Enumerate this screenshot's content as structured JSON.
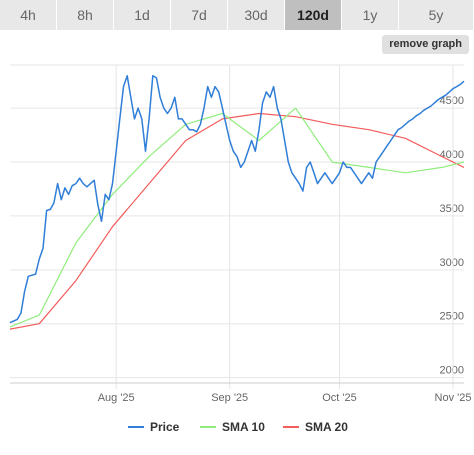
{
  "tabs": [
    {
      "label": "4h",
      "active": false
    },
    {
      "label": "8h",
      "active": false
    },
    {
      "label": "1d",
      "active": false
    },
    {
      "label": "7d",
      "active": false
    },
    {
      "label": "30d",
      "active": false
    },
    {
      "label": "120d",
      "active": true
    },
    {
      "label": "1y",
      "active": false
    },
    {
      "label": "5y",
      "active": false
    }
  ],
  "remove_graph_label": "remove graph",
  "colors": {
    "price": "#2f7ed8",
    "sma10": "#90ed7d",
    "sma20": "#f45b5b",
    "grid": "#e6e6e6",
    "tab_bg": "#e8e8e8",
    "tab_active": "#bfbfbf"
  },
  "chart_data": {
    "type": "line",
    "x_tick_labels": [
      "Aug '25",
      "Sep '25",
      "Oct '25",
      "Nov '25"
    ],
    "x_tick_days": [
      31,
      62,
      92,
      123
    ],
    "y_tick_labels": [
      "2000",
      "2500",
      "3000",
      "3500",
      "4000",
      "4500"
    ],
    "ylim": [
      1950,
      4900
    ],
    "xlim": [
      2,
      126
    ],
    "grid": true,
    "legend": "bottom",
    "series": [
      {
        "name": "Price",
        "x": [
          2,
          4,
          5,
          6,
          7,
          8,
          9,
          10,
          11,
          12,
          13,
          14,
          15,
          16,
          17,
          18,
          19,
          20,
          21,
          22,
          23,
          24,
          25,
          26,
          27,
          28,
          29,
          30,
          31,
          32,
          33,
          34,
          35,
          36,
          37,
          38,
          39,
          40,
          41,
          42,
          43,
          44,
          45,
          46,
          47,
          48,
          49,
          50,
          51,
          52,
          53,
          54,
          55,
          56,
          57,
          58,
          59,
          60,
          61,
          62,
          63,
          64,
          65,
          66,
          67,
          68,
          69,
          70,
          71,
          72,
          73,
          74,
          75,
          76,
          77,
          78,
          79,
          80,
          81,
          82,
          83,
          84,
          85,
          86,
          87,
          88,
          89,
          90,
          91,
          92,
          93,
          94,
          95,
          96,
          97,
          98,
          99,
          100,
          101,
          102,
          103,
          104,
          105,
          106,
          107,
          108,
          109,
          110,
          111,
          112,
          113,
          114,
          115,
          116,
          117,
          118,
          119,
          120,
          121,
          122,
          123,
          124,
          125,
          126
        ],
        "values": [
          2510,
          2540,
          2600,
          2800,
          2940,
          2950,
          2960,
          3100,
          3200,
          3550,
          3560,
          3620,
          3800,
          3650,
          3760,
          3700,
          3780,
          3800,
          3850,
          3800,
          3770,
          3800,
          3830,
          3600,
          3450,
          3700,
          3650,
          3800,
          4100,
          4400,
          4700,
          4800,
          4600,
          4400,
          4500,
          4400,
          4100,
          4400,
          4800,
          4780,
          4600,
          4500,
          4450,
          4500,
          4600,
          4400,
          4400,
          4350,
          4300,
          4300,
          4280,
          4350,
          4500,
          4700,
          4600,
          4700,
          4650,
          4500,
          4350,
          4200,
          4100,
          4050,
          3950,
          4000,
          4100,
          4200,
          4100,
          4300,
          4550,
          4650,
          4600,
          4700,
          4500,
          4400,
          4200,
          4000,
          3900,
          3850,
          3800,
          3730,
          3950,
          4000,
          3900,
          3800,
          3850,
          3900,
          3850,
          3800,
          3850,
          3900,
          4000,
          3950,
          3950,
          3900,
          3850,
          3800,
          3850,
          3900,
          3850,
          4000,
          4050,
          4100,
          4150,
          4200,
          4250,
          4300,
          4320,
          4350,
          4380,
          4400,
          4430,
          4450,
          4480,
          4500,
          4520,
          4550,
          4580,
          4600,
          4620,
          4650,
          4680,
          4700,
          4720,
          4750
        ]
      },
      {
        "name": "SMA 10",
        "x": [
          2,
          10,
          20,
          30,
          40,
          50,
          60,
          70,
          80,
          90,
          100,
          110,
          120,
          126
        ],
        "values": [
          2470,
          2580,
          3250,
          3700,
          4050,
          4350,
          4450,
          4200,
          4500,
          4000,
          3950,
          3900,
          3950,
          4000
        ]
      },
      {
        "name": "SMA 20",
        "x": [
          2,
          10,
          20,
          30,
          40,
          50,
          60,
          70,
          80,
          90,
          100,
          110,
          120,
          126
        ],
        "values": [
          2450,
          2500,
          2900,
          3400,
          3800,
          4200,
          4400,
          4450,
          4420,
          4350,
          4300,
          4220,
          4050,
          3950
        ]
      }
    ]
  }
}
